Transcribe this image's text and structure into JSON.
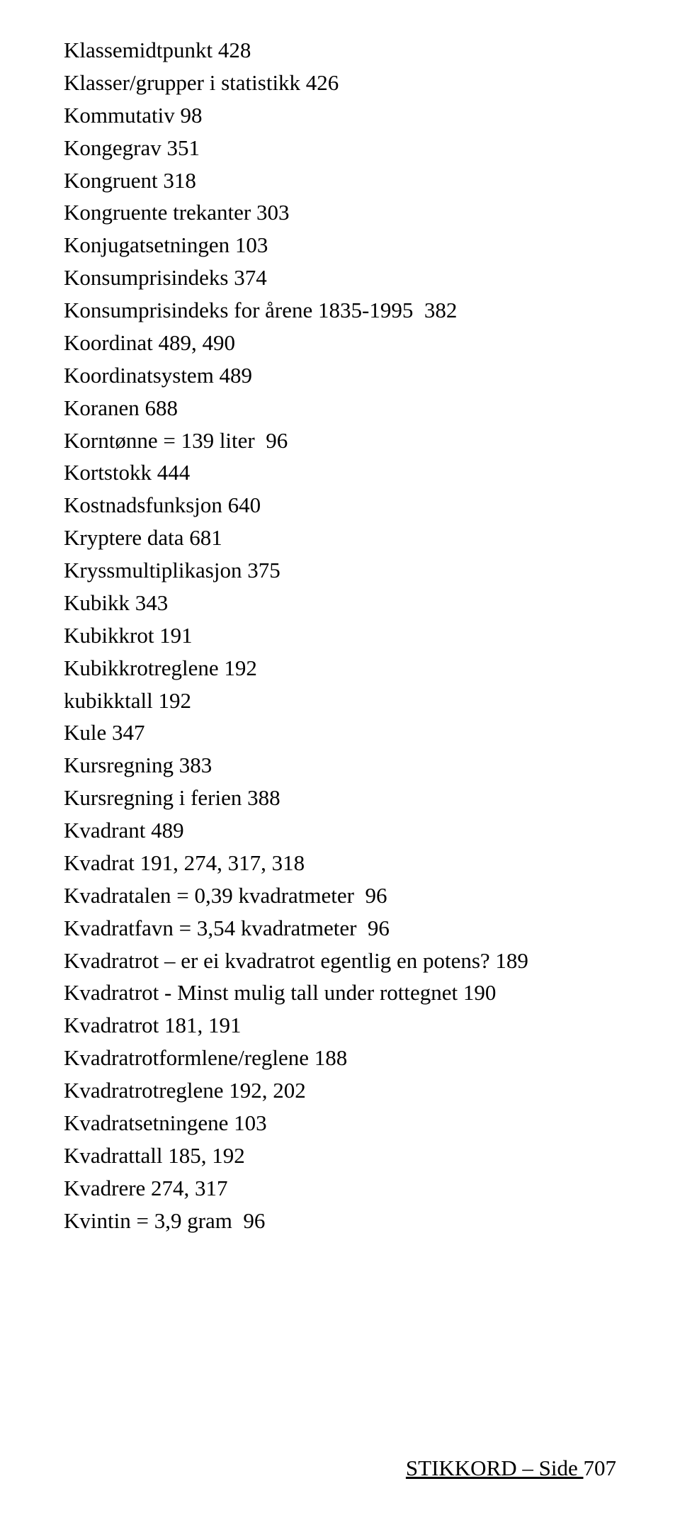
{
  "entries": [
    "Klassemidtpunkt 428",
    "Klasser/grupper i statistikk 426",
    "Kommutativ 98",
    "Kongegrav 351",
    "Kongruent 318",
    "Kongruente trekanter 303",
    "Konjugatsetningen 103",
    "Konsumprisindeks 374",
    "Konsumprisindeks for årene 1835-1995  382",
    "Koordinat 489, 490",
    "Koordinatsystem 489",
    "Koranen 688",
    "Korntønne = 139 liter  96",
    "Kortstokk 444",
    "Kostnadsfunksjon 640",
    "Kryptere data 681",
    "Kryssmultiplikasjon 375",
    "Kubikk 343",
    "Kubikkrot 191",
    "Kubikkrotreglene 192",
    "kubikktall 192",
    "Kule 347",
    "Kursregning 383",
    "Kursregning i ferien 388",
    "Kvadrant 489",
    "Kvadrat 191, 274, 317, 318",
    "Kvadratalen = 0,39 kvadratmeter  96",
    "Kvadratfavn = 3,54 kvadratmeter  96",
    "Kvadratrot – er ei kvadratrot egentlig en potens? 189",
    "Kvadratrot - Minst mulig tall under rottegnet 190",
    "Kvadratrot 181, 191",
    "Kvadratrotformlene/reglene 188",
    "Kvadratrotreglene 192, 202",
    "Kvadratsetningene 103",
    "Kvadrattall 185, 192",
    "Kvadrere 274, 317",
    "Kvintin = 3,9 gram  96"
  ],
  "footer": {
    "label": "STIKKORD – Side ",
    "page": "707"
  }
}
